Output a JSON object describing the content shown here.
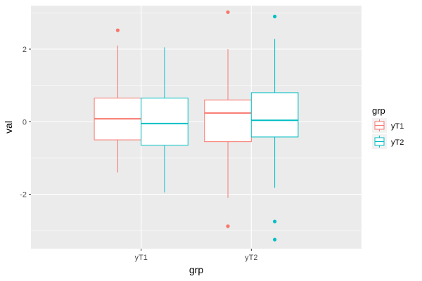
{
  "chart_data": {
    "type": "boxplot",
    "xlabel": "grp",
    "ylabel": "val",
    "categories": [
      "yT1",
      "yT2"
    ],
    "ylim": [
      -3.5,
      3.2
    ],
    "y_ticks": [
      -2,
      0,
      2
    ],
    "y_tick_labels": [
      "-2",
      "0",
      "2"
    ],
    "grid": true,
    "legend": {
      "title": "grp",
      "position": "right",
      "entries": [
        "yT1",
        "yT2"
      ]
    },
    "colors": {
      "yT1": "#f8766d",
      "yT2": "#00bfc4",
      "panel": "#ebebeb",
      "grid": "#ffffff"
    },
    "boxes": [
      {
        "category": "yT1",
        "series": "yT1",
        "whisker_low": -1.4,
        "q1": -0.5,
        "median": 0.08,
        "q3": 0.65,
        "whisker_high": 2.1,
        "outliers": [
          2.52
        ]
      },
      {
        "category": "yT1",
        "series": "yT2",
        "whisker_low": -1.95,
        "q1": -0.65,
        "median": -0.05,
        "q3": 0.65,
        "whisker_high": 2.05,
        "outliers": []
      },
      {
        "category": "yT2",
        "series": "yT1",
        "whisker_low": -2.1,
        "q1": -0.55,
        "median": 0.24,
        "q3": 0.6,
        "whisker_high": 2.0,
        "outliers": [
          3.02,
          -2.88
        ]
      },
      {
        "category": "yT2",
        "series": "yT2",
        "whisker_low": -1.82,
        "q1": -0.42,
        "median": 0.04,
        "q3": 0.8,
        "whisker_high": 2.28,
        "outliers": [
          2.9,
          -2.75,
          -3.25
        ]
      }
    ]
  }
}
